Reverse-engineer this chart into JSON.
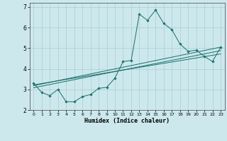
{
  "title": "",
  "xlabel": "Humidex (Indice chaleur)",
  "background_color": "#cce8ec",
  "grid_color": "#aacdd4",
  "line_color": "#1a6e6a",
  "xlim": [
    -0.5,
    23.5
  ],
  "ylim": [
    2,
    7.2
  ],
  "yticks": [
    2,
    3,
    4,
    5,
    6,
    7
  ],
  "xticks": [
    0,
    1,
    2,
    3,
    4,
    5,
    6,
    7,
    8,
    9,
    10,
    11,
    12,
    13,
    14,
    15,
    16,
    17,
    18,
    19,
    20,
    21,
    22,
    23
  ],
  "series_main": {
    "x": [
      0,
      1,
      2,
      3,
      4,
      5,
      6,
      7,
      8,
      9,
      10,
      11,
      12,
      13,
      14,
      15,
      16,
      17,
      18,
      19,
      20,
      21,
      22,
      23
    ],
    "y": [
      3.3,
      2.85,
      2.7,
      3.0,
      2.4,
      2.4,
      2.65,
      2.75,
      3.05,
      3.1,
      3.55,
      4.35,
      4.4,
      6.65,
      6.35,
      6.85,
      6.2,
      5.9,
      5.2,
      4.85,
      4.9,
      4.6,
      4.35,
      5.05
    ]
  },
  "series_lines": [
    {
      "x": [
        0,
        23
      ],
      "y": [
        3.18,
        5.05
      ]
    },
    {
      "x": [
        0,
        23
      ],
      "y": [
        3.08,
        4.88
      ]
    },
    {
      "x": [
        0,
        23
      ],
      "y": [
        3.22,
        4.72
      ]
    }
  ]
}
